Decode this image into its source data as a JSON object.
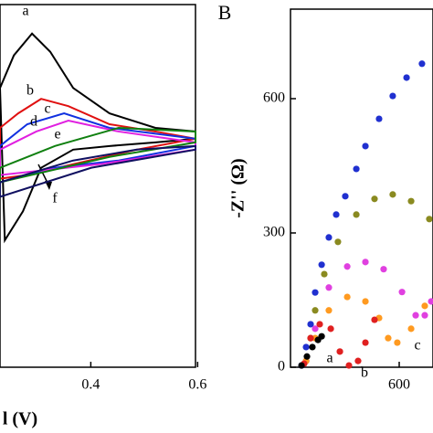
{
  "chart_data": [
    {
      "type": "line",
      "x_label": "l (V)",
      "xlim": [
        0.23,
        0.596
      ],
      "ylim": [
        0,
        100
      ],
      "xticks": [
        0.4,
        0.6
      ],
      "series": [
        {
          "name": "a",
          "color": "#000000",
          "x": [
            0.23,
            0.256,
            0.29,
            0.324,
            0.367,
            0.435,
            0.521,
            0.596,
            0.596,
            0.521,
            0.435,
            0.367,
            0.307,
            0.273,
            0.239
          ],
          "values": [
            77,
            86,
            92,
            87,
            77,
            70,
            66,
            65,
            63,
            62,
            61,
            60,
            55,
            43,
            35
          ]
        },
        {
          "name": "b",
          "color": "#e01010",
          "x": [
            0.23,
            0.264,
            0.307,
            0.358,
            0.435,
            0.521,
            0.596,
            0.596,
            0.486,
            0.367,
            0.281,
            0.23
          ],
          "values": [
            66,
            70,
            74,
            72,
            67,
            65,
            63,
            63,
            60,
            56,
            53,
            52
          ]
        },
        {
          "name": "c",
          "color": "#1030e0",
          "x": [
            0.23,
            0.281,
            0.35,
            0.435,
            0.596,
            0.596,
            0.452,
            0.333,
            0.23
          ],
          "values": [
            61,
            67,
            70,
            66,
            63,
            61,
            57,
            55,
            51
          ]
        },
        {
          "name": "d",
          "color": "#e020e0",
          "x": [
            0.23,
            0.298,
            0.358,
            0.452,
            0.596,
            0.596,
            0.418,
            0.23
          ],
          "values": [
            60,
            65,
            68,
            65,
            62,
            60,
            56,
            53
          ]
        },
        {
          "name": "e",
          "color": "#108010",
          "x": [
            0.23,
            0.333,
            0.452,
            0.596,
            0.596,
            0.435,
            0.23
          ],
          "values": [
            55,
            61,
            66,
            65,
            62,
            58,
            51
          ]
        },
        {
          "name": "f",
          "color": "#101060",
          "x": [
            0.23,
            0.367,
            0.486,
            0.596,
            0.596,
            0.401,
            0.23
          ],
          "values": [
            51,
            57,
            60,
            61,
            60,
            55,
            47
          ]
        }
      ]
    },
    {
      "type": "scatter",
      "panel": "B",
      "y_label": "-Z'' (Ω)",
      "xlim": [
        -21,
        793
      ],
      "ylim": [
        0,
        800
      ],
      "xticks": [
        600
      ],
      "yticks": [
        0,
        300,
        600
      ],
      "series": [
        {
          "color": "#2030d0",
          "x": [
            42,
            68,
            94,
            120,
            157,
            198,
            240,
            292,
            355,
            407,
            485,
            563,
            642,
            730
          ],
          "values": [
            4,
            45,
            96,
            167,
            229,
            290,
            341,
            382,
            443,
            494,
            555,
            606,
            647,
            678
          ]
        },
        {
          "color": "#8a8a20",
          "x": [
            68,
            94,
            120,
            172,
            250,
            355,
            459,
            563,
            668,
            772
          ],
          "values": [
            14,
            65,
            127,
            208,
            280,
            341,
            376,
            386,
            371,
            331
          ]
        },
        {
          "color": "#e040e0",
          "x": [
            68,
            120,
            198,
            303,
            407,
            511,
            616,
            694,
            746,
            783
          ],
          "values": [
            14,
            86,
            178,
            225,
            235,
            219,
            168,
            116,
            116,
            147
          ]
        },
        {
          "name": "c",
          "color": "#ff9a20",
          "x": [
            68,
            120,
            198,
            303,
            407,
            485,
            537,
            589,
            668,
            746
          ],
          "values": [
            14,
            65,
            127,
            157,
            147,
            110,
            65,
            55,
            86,
            137
          ]
        },
        {
          "name": "b",
          "color": "#e02020",
          "x": [
            57,
            94,
            146,
            209,
            261,
            313,
            365,
            407,
            459
          ],
          "values": [
            8,
            65,
            96,
            86,
            35,
            4,
            14,
            55,
            106
          ]
        },
        {
          "name": "a",
          "color": "#000000",
          "x": [
            42,
            73,
            104,
            136,
            157
          ],
          "values": [
            4,
            24,
            45,
            61,
            69
          ]
        }
      ]
    }
  ]
}
